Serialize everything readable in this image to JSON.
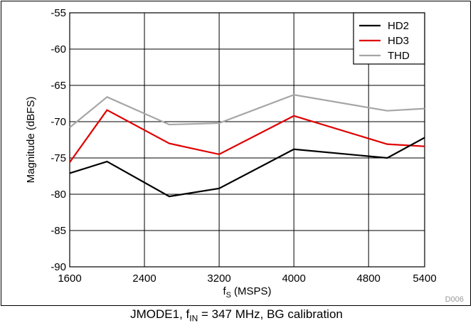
{
  "chart_data": {
    "type": "line",
    "x": [
      1600,
      2000,
      2666,
      3200,
      4000,
      5000,
      5400
    ],
    "series": [
      {
        "name": "HD2",
        "color": "#000000",
        "values": [
          -77.1,
          -75.5,
          -80.3,
          -79.2,
          -73.8,
          -75.0,
          -72.2
        ]
      },
      {
        "name": "HD3",
        "color": "#e00000",
        "values": [
          -75.6,
          -68.4,
          -73.0,
          -74.5,
          -69.2,
          -73.1,
          -73.4
        ]
      },
      {
        "name": "THD",
        "color": "#a6a6a6",
        "values": [
          -70.8,
          -66.6,
          -70.4,
          -70.2,
          -66.3,
          -68.5,
          -68.2
        ]
      }
    ],
    "xlabel": "(MSPS)",
    "xlabel_symbol": "f",
    "xlabel_sub": "S",
    "ylabel": "Magnitude (dBFS)",
    "xlim": [
      1600,
      5400
    ],
    "ylim": [
      -90,
      -55
    ],
    "xticks": [
      1600,
      2400,
      3200,
      4000,
      4800,
      5400
    ],
    "xtick_labels": [
      "1600",
      "2400",
      "3200",
      "4000",
      "4800",
      "5400"
    ],
    "yticks": [
      -90,
      -85,
      -80,
      -75,
      -70,
      -65,
      -60,
      -55
    ],
    "ytick_labels": [
      "-90",
      "-85",
      "-80",
      "-75",
      "-70",
      "-65",
      "-60",
      "-55"
    ],
    "grid": true,
    "legend_position": "top-right",
    "figure_id": "D006"
  },
  "caption": {
    "pre": "JMODE1, f",
    "sub": "IN",
    "post": " = 347 MHz, BG calibration"
  }
}
